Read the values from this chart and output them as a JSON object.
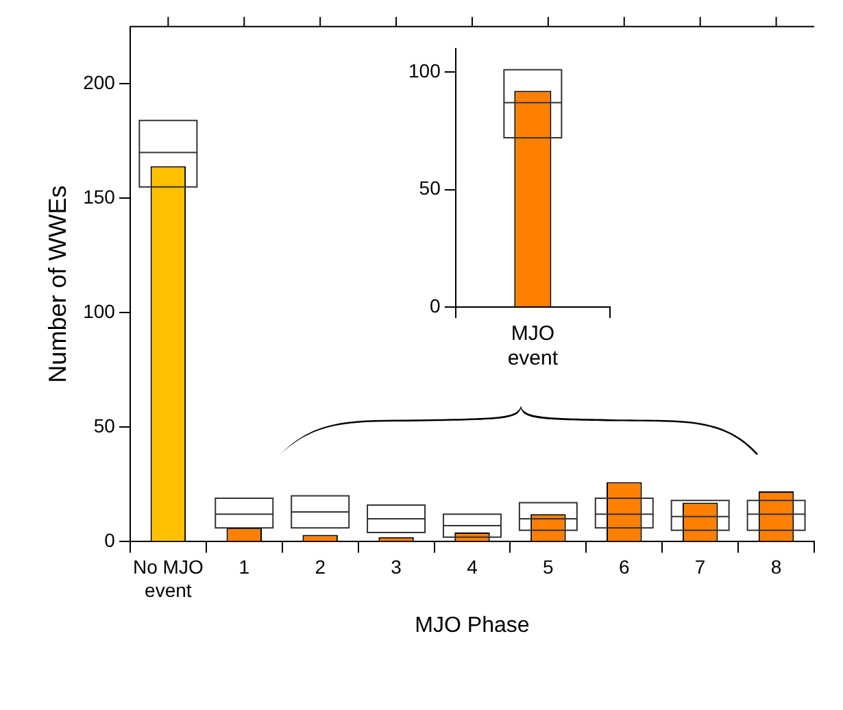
{
  "chart_data": [
    {
      "type": "bar",
      "xlabel": "MJO Phase",
      "ylabel": "Number of WWEs",
      "categories": [
        "No MJO event",
        "1",
        "2",
        "3",
        "4",
        "5",
        "6",
        "7",
        "8"
      ],
      "ylim": [
        0,
        225
      ],
      "yticks": [
        0,
        50,
        100,
        150,
        200
      ],
      "grid": false,
      "legend": false,
      "series": [
        {
          "type": "bar",
          "values": [
            164,
            6,
            3,
            2,
            4,
            12,
            26,
            17,
            22
          ],
          "colors": [
            "#ffc000",
            "#ff8000",
            "#ff8000",
            "#ff8000",
            "#ff8000",
            "#ff8000",
            "#ff8000",
            "#ff8000",
            "#ff8000"
          ]
        },
        {
          "type": "box",
          "color": "#333333",
          "boxes": [
            {
              "low": 155,
              "q1": 155,
              "median": 170,
              "q3": 184,
              "high": 184
            },
            {
              "low": 6,
              "q1": 6,
              "median": 12,
              "q3": 19,
              "high": 19
            },
            {
              "low": 6,
              "q1": 6,
              "median": 13,
              "q3": 20,
              "high": 20
            },
            {
              "low": 4,
              "q1": 4,
              "median": 10,
              "q3": 16,
              "high": 16
            },
            {
              "low": 2,
              "q1": 2,
              "median": 7,
              "q3": 12,
              "high": 12
            },
            {
              "low": 5,
              "q1": 5,
              "median": 10,
              "q3": 17,
              "high": 17
            },
            {
              "low": 6,
              "q1": 6,
              "median": 12,
              "q3": 19,
              "high": 19
            },
            {
              "low": 5,
              "q1": 5,
              "median": 11,
              "q3": 18,
              "high": 18
            },
            {
              "low": 5,
              "q1": 5,
              "median": 12,
              "q3": 18,
              "high": 18
            }
          ]
        }
      ]
    },
    {
      "type": "bar",
      "categories": [
        "MJO event"
      ],
      "ylim": [
        0,
        110
      ],
      "yticks": [
        0,
        50,
        100
      ],
      "grid": false,
      "legend": false,
      "series": [
        {
          "type": "bar",
          "values": [
            92
          ],
          "colors": [
            "#ff8000"
          ]
        },
        {
          "type": "box",
          "color": "#333333",
          "boxes": [
            {
              "low": 72,
              "q1": 72,
              "median": 87,
              "q3": 101,
              "high": 101
            }
          ]
        }
      ]
    }
  ]
}
